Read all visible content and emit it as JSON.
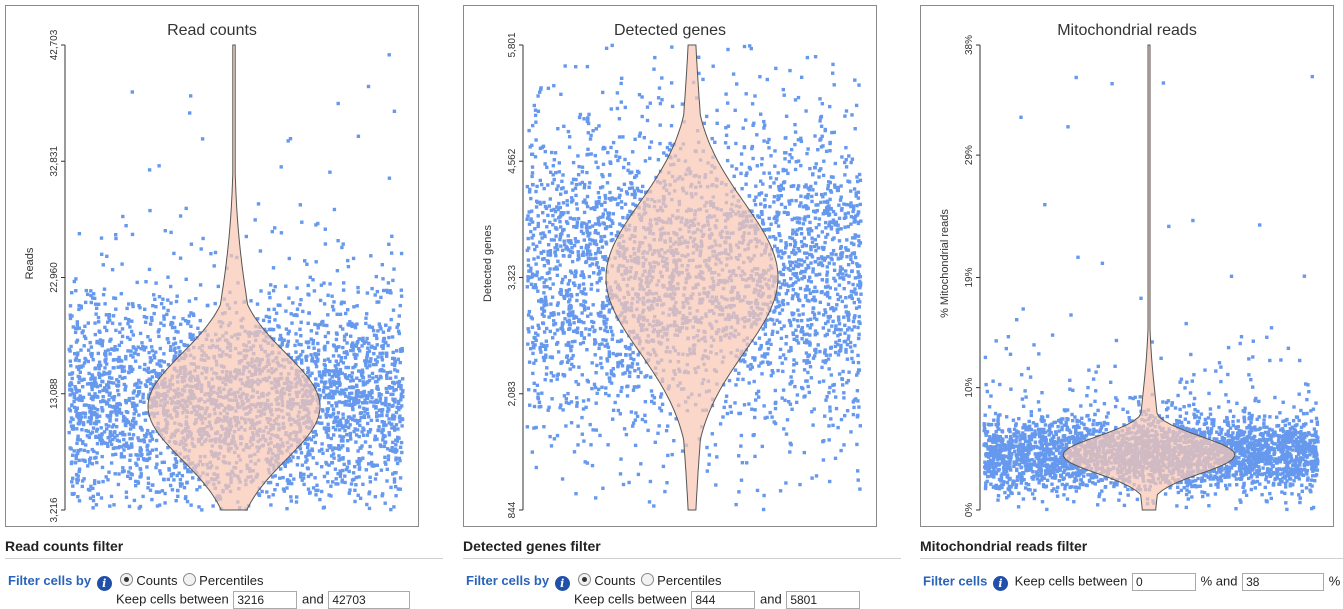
{
  "colors": {
    "points": "#6699ee",
    "violin_fill": "#f9c7b4",
    "violin_stroke": "#555555",
    "frame": "#8a8a8a",
    "info_icon": "#2150a8",
    "filter_label": "#2a64b8"
  },
  "panels": [
    {
      "title": "Read counts",
      "ylabel": "Reads",
      "ticks": [
        "3,216",
        "13,088",
        "22,960",
        "32,831",
        "42,703"
      ]
    },
    {
      "title": "Detected genes",
      "ylabel": "Detected genes",
      "ticks": [
        "844",
        "2,083",
        "3,323",
        "4,562",
        "5,801"
      ]
    },
    {
      "title": "Mitochondrial reads",
      "ylabel": "% Mitochondrial reads",
      "ticks": [
        "0%",
        "10%",
        "19%",
        "29%",
        "38%"
      ]
    }
  ],
  "chart_data": [
    {
      "type": "scatter",
      "title": "Read counts",
      "ylabel": "Reads",
      "ylim": [
        3216,
        42703
      ],
      "y_ticks": [
        3216,
        13088,
        22960,
        32831,
        42703
      ],
      "overlay": "violin",
      "distribution": {
        "mode": 12000,
        "spread": 4500,
        "max": 42703,
        "min": 3216
      }
    },
    {
      "type": "scatter",
      "title": "Detected genes",
      "ylabel": "Detected genes",
      "ylim": [
        844,
        5801
      ],
      "y_ticks": [
        844,
        2083,
        3323,
        4562,
        5801
      ],
      "overlay": "violin",
      "distribution": {
        "mode": 3323,
        "spread": 800,
        "max": 5801,
        "min": 844
      }
    },
    {
      "type": "scatter",
      "title": "Mitochondrial reads",
      "ylabel": "% Mitochondrial reads",
      "ylim": [
        0,
        38
      ],
      "y_ticks": [
        0,
        10,
        19,
        29,
        38
      ],
      "overlay": "violin",
      "distribution": {
        "mode": 4.5,
        "spread": 1.5,
        "max": 38,
        "min": 0
      }
    }
  ],
  "filters": [
    {
      "title": "Read counts filter",
      "filter_by": "Filter cells by",
      "opt_counts": "Counts",
      "opt_percentiles": "Percentiles",
      "keep_between": "Keep cells between",
      "and": "and",
      "min": "3216",
      "max": "42703"
    },
    {
      "title": "Detected genes filter",
      "filter_by": "Filter cells by",
      "opt_counts": "Counts",
      "opt_percentiles": "Percentiles",
      "keep_between": "Keep cells between",
      "and": "and",
      "min": "844",
      "max": "5801"
    },
    {
      "title": "Mitochondrial reads filter",
      "filter_by": "Filter cells",
      "keep_between": "Keep cells between",
      "and": "% and",
      "pct": "%",
      "min": "0",
      "max": "38"
    }
  ]
}
